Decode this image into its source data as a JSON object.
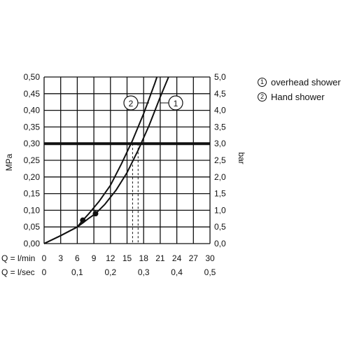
{
  "chart_data": {
    "type": "line",
    "left_axis": {
      "unit": "MPa",
      "ticks": [
        "0,00",
        "0,05",
        "0,10",
        "0,15",
        "0,20",
        "0,25",
        "0,30",
        "0,35",
        "0,40",
        "0,45",
        "0,50"
      ],
      "range": [
        0,
        0.5
      ]
    },
    "right_axis": {
      "unit": "bar",
      "ticks": [
        "0,0",
        "0,5",
        "1,0",
        "1,5",
        "2,0",
        "2,5",
        "3,0",
        "3,5",
        "4,0",
        "4,5",
        "5,0"
      ],
      "range": [
        0,
        5
      ]
    },
    "x_axis_lmin": {
      "label": "Q = l/min",
      "ticks": [
        "0",
        "3",
        "6",
        "9",
        "12",
        "15",
        "18",
        "21",
        "24",
        "27",
        "30"
      ],
      "range": [
        0,
        30
      ]
    },
    "x_axis_lsec": {
      "label": "Q = l/sec",
      "ticks": [
        {
          "v": 0,
          "t": "0"
        },
        {
          "v": 0.1,
          "t": "0,1"
        },
        {
          "v": 0.2,
          "t": "0,2"
        },
        {
          "v": 0.3,
          "t": "0,3"
        },
        {
          "v": 0.4,
          "t": "0,4"
        },
        {
          "v": 0.5,
          "t": "0,5"
        }
      ]
    },
    "grid": true,
    "reference_line": {
      "y": 0.3,
      "unit": "MPa"
    },
    "series": [
      {
        "name": "overhead shower",
        "marker": "1",
        "points": [
          [
            0,
            0
          ],
          [
            3,
            0.024
          ],
          [
            6,
            0.05
          ],
          [
            7,
            0.062
          ],
          [
            8,
            0.075
          ],
          [
            9.3,
            0.09
          ],
          [
            11,
            0.118
          ],
          [
            13,
            0.16
          ],
          [
            15,
            0.213
          ],
          [
            17,
            0.28
          ],
          [
            19,
            0.355
          ],
          [
            21,
            0.44
          ],
          [
            22.5,
            0.5
          ]
        ],
        "point": [
          9.3,
          0.09
        ],
        "q_at_ref": 17
      },
      {
        "name": "Hand shower",
        "marker": "2",
        "points": [
          [
            0,
            0
          ],
          [
            3,
            0.024
          ],
          [
            6,
            0.05
          ],
          [
            7,
            0.07
          ],
          [
            8,
            0.088
          ],
          [
            10,
            0.128
          ],
          [
            12,
            0.175
          ],
          [
            14,
            0.24
          ],
          [
            16,
            0.31
          ],
          [
            18,
            0.39
          ],
          [
            20,
            0.48
          ],
          [
            20.4,
            0.5
          ]
        ],
        "point": [
          7,
          0.07
        ],
        "q_at_ref": 16
      }
    ]
  }
}
